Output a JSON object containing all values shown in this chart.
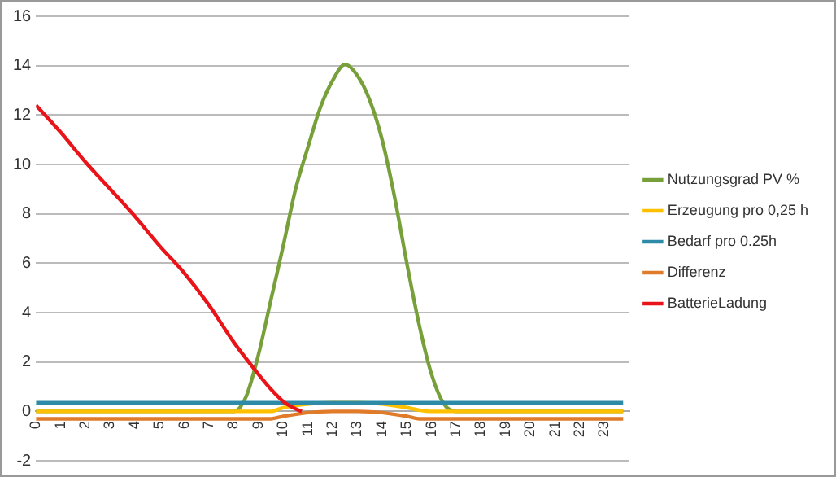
{
  "chart_data": {
    "type": "line",
    "xlim": [
      0,
      24
    ],
    "xticks": [
      0,
      1,
      2,
      3,
      4,
      5,
      6,
      7,
      8,
      9,
      10,
      11,
      12,
      13,
      14,
      15,
      16,
      17,
      18,
      19,
      20,
      21,
      22,
      23
    ],
    "ylim": [
      -2,
      16
    ],
    "yticks": [
      -2,
      0,
      2,
      4,
      6,
      8,
      10,
      12,
      14,
      16
    ],
    "grid": "y",
    "legend": "right",
    "marker": "none",
    "line_style": "solid",
    "series": [
      {
        "name": "Nutzungsgrad PV %",
        "color": "#77a03a",
        "x": [
          0,
          8,
          8.5,
          9,
          9.5,
          10,
          10.5,
          11,
          11.5,
          12,
          12.5,
          13,
          13.5,
          14,
          14.5,
          15,
          15.5,
          16,
          16.5,
          17,
          23.75
        ],
        "values": [
          0,
          0,
          0.6,
          2.3,
          4.5,
          6.7,
          9,
          10.7,
          12.3,
          13.4,
          14.05,
          13.6,
          12.6,
          11,
          8.7,
          6,
          3.5,
          1.5,
          0.3,
          0,
          0
        ]
      },
      {
        "name": "Erzeugung pro 0,25 h",
        "color": "#ffc000",
        "x": [
          0,
          9.5,
          10,
          11,
          12,
          13,
          14,
          15,
          15.5,
          16,
          23.75
        ],
        "values": [
          0,
          0,
          0.15,
          0.3,
          0.35,
          0.35,
          0.3,
          0.15,
          0.05,
          0,
          0
        ]
      },
      {
        "name": "Bedarf pro 0.25h",
        "color": "#2e8ba8",
        "x": [
          0,
          23.75
        ],
        "values": [
          0.35,
          0.35
        ]
      },
      {
        "name": "Differenz",
        "color": "#e07b2a",
        "x": [
          0,
          9.5,
          10,
          11,
          12,
          13,
          14,
          15,
          15.5,
          16,
          23.75
        ],
        "values": [
          -0.3,
          -0.3,
          -0.2,
          -0.05,
          0,
          0,
          -0.05,
          -0.2,
          -0.3,
          -0.3,
          -0.3
        ]
      },
      {
        "name": "BatterieLadung",
        "color": "#e8141a",
        "x": [
          0,
          1,
          2,
          3,
          4,
          5,
          6,
          7,
          8,
          9,
          9.5,
          10,
          10.5,
          10.75
        ],
        "values": [
          12.4,
          11.3,
          10.1,
          9,
          7.9,
          6.7,
          5.6,
          4.3,
          2.8,
          1.5,
          0.9,
          0.4,
          0.1,
          0
        ]
      }
    ]
  }
}
